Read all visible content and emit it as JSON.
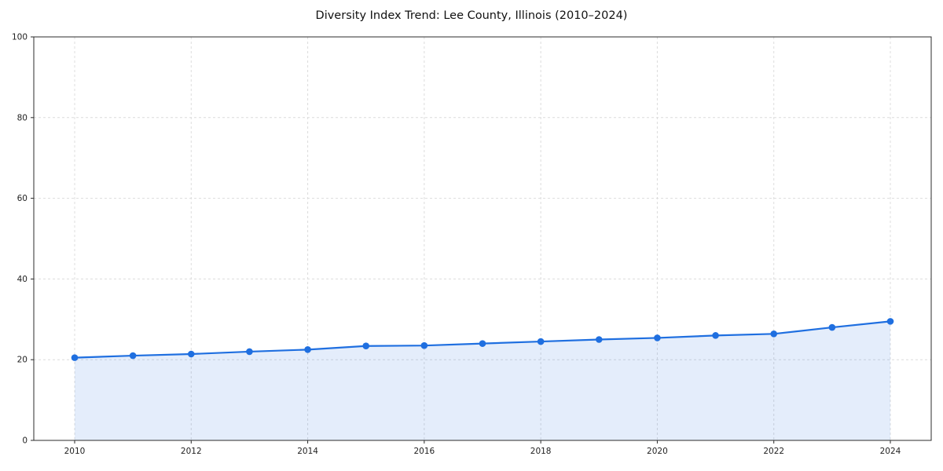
{
  "chart_data": {
    "type": "line",
    "title": "Diversity Index Trend: Lee County, Illinois (2010–2024)",
    "x": [
      2010,
      2011,
      2012,
      2013,
      2014,
      2015,
      2016,
      2017,
      2018,
      2019,
      2020,
      2021,
      2022,
      2023,
      2024
    ],
    "values": [
      20.5,
      21.0,
      21.4,
      22.0,
      22.5,
      23.4,
      23.5,
      24.0,
      24.5,
      25.0,
      25.4,
      26.0,
      26.4,
      28.0,
      29.5
    ],
    "ylabel": "",
    "xlabel": "",
    "ylim": [
      0,
      100
    ],
    "yticks": [
      0,
      20,
      40,
      60,
      80,
      100
    ],
    "xticks": [
      2010,
      2012,
      2014,
      2016,
      2018,
      2020,
      2022,
      2024
    ],
    "grid": "dashed",
    "legend": "none",
    "colors": {
      "line": "#1f6fe0",
      "marker": "#1f6fe0",
      "fill": "#1f6fe0",
      "fill_opacity": 0.12,
      "grid": "#dcdcdc",
      "frame": "#2b2b2b",
      "tick_text": "#222222"
    }
  }
}
